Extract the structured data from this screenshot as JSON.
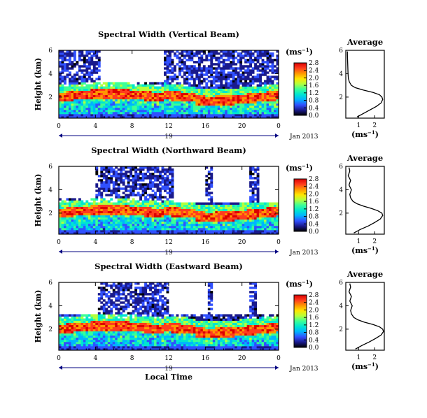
{
  "colors": {
    "colormap": [
      "#000000",
      "#1a1a8c",
      "#3050ff",
      "#00b4ff",
      "#00e6d0",
      "#3cff96",
      "#b4ff3c",
      "#ffe600",
      "#ff9600",
      "#ff3c1e",
      "#dc0000"
    ],
    "axes": "#000000",
    "date_bar": "#000080"
  },
  "panels": [
    {
      "title": "Spectral Width (Vertical Beam)",
      "average_title": "Average"
    },
    {
      "title": "Spectral Width (Northward Beam)",
      "average_title": "Average"
    },
    {
      "title": "Spectral Width (Eastward Beam)",
      "average_title": "Average"
    }
  ],
  "text": {
    "colorbar_unit": "(ms",
    "colorbar_unit_exp": "−1",
    "colorbar_unit_close": ")",
    "avg_xlabel": "(ms",
    "avg_xlabel_exp": "−1",
    "avg_xlabel_close": ")",
    "date_label": "Jan 2013",
    "day_label": "19",
    "xlabel": "Local Time",
    "ylabel": "Height (km)"
  },
  "chart_data": [
    {
      "type": "heatmap",
      "title": "Spectral Width (Vertical Beam)",
      "xlabel": "Local Time",
      "ylabel": "Height (km)",
      "x_ticks": [
        "0",
        "4",
        "8",
        "12",
        "16",
        "20",
        "0"
      ],
      "y_ticks": [
        "2",
        "4",
        "6"
      ],
      "xlim": [
        0,
        24
      ],
      "ylim": [
        0.2,
        6
      ],
      "colorbar": {
        "label": "(ms−1)",
        "range": [
          0.0,
          2.8
        ],
        "ticks": [
          "0.0",
          "0.4",
          "0.8",
          "1.2",
          "1.6",
          "2.0",
          "2.4",
          "2.8"
        ]
      },
      "description_values": {
        "high_width_layer_km": [
          1.7,
          2.5
        ],
        "upper_echo_start_h": 0
      },
      "average_profile": {
        "xlabel": "(ms−1)",
        "x_ticks": [
          "1",
          "2"
        ],
        "y_ticks": [
          "2",
          "4",
          "6"
        ],
        "xlim": [
          0.2,
          2.6
        ],
        "ylim": [
          0.2,
          6
        ],
        "height_km": [
          0.3,
          0.6,
          0.9,
          1.2,
          1.5,
          1.8,
          2.0,
          2.2,
          2.4,
          2.6,
          2.8,
          3.0,
          3.3,
          3.6,
          4.0,
          4.4,
          4.8,
          5.2,
          5.6,
          5.9
        ],
        "width_ms": [
          0.9,
          1.3,
          1.7,
          2.1,
          2.4,
          2.5,
          2.45,
          2.3,
          1.9,
          1.3,
          0.8,
          0.55,
          0.42,
          0.36,
          0.34,
          0.33,
          0.32,
          0.31,
          0.3,
          0.3
        ]
      }
    },
    {
      "type": "heatmap",
      "title": "Spectral Width (Northward Beam)",
      "xlabel": "Local Time",
      "ylabel": "Height (km)",
      "x_ticks": [
        "0",
        "4",
        "8",
        "12",
        "16",
        "20",
        "0"
      ],
      "y_ticks": [
        "2",
        "4",
        "6"
      ],
      "xlim": [
        0,
        24
      ],
      "ylim": [
        0.2,
        6
      ],
      "colorbar": {
        "label": "(ms−1)",
        "range": [
          0.0,
          2.8
        ],
        "ticks": [
          "0.0",
          "0.4",
          "0.8",
          "1.2",
          "1.6",
          "2.0",
          "2.4",
          "2.8"
        ]
      },
      "average_profile": {
        "xlabel": "(ms−1)",
        "x_ticks": [
          "1",
          "2"
        ],
        "y_ticks": [
          "2",
          "4",
          "6"
        ],
        "xlim": [
          0.2,
          2.6
        ],
        "ylim": [
          0.2,
          6
        ],
        "height_km": [
          0.3,
          0.6,
          0.9,
          1.2,
          1.5,
          1.8,
          2.0,
          2.2,
          2.4,
          2.6,
          2.8,
          3.0,
          3.3,
          3.6,
          4.0,
          4.4,
          4.8,
          5.2,
          5.6,
          5.9
        ],
        "width_ms": [
          0.7,
          1.1,
          1.6,
          2.0,
          2.35,
          2.5,
          2.45,
          2.2,
          1.8,
          1.3,
          0.9,
          0.65,
          0.5,
          0.45,
          0.55,
          0.4,
          0.5,
          0.35,
          0.45,
          0.4
        ]
      }
    },
    {
      "type": "heatmap",
      "title": "Spectral Width (Eastward Beam)",
      "xlabel": "Local Time",
      "ylabel": "Height (km)",
      "x_ticks": [
        "0",
        "4",
        "8",
        "12",
        "16",
        "20",
        "0"
      ],
      "y_ticks": [
        "2",
        "4",
        "6"
      ],
      "xlim": [
        0,
        24
      ],
      "ylim": [
        0.2,
        6
      ],
      "colorbar": {
        "label": "(ms−1)",
        "range": [
          0.0,
          2.8
        ],
        "ticks": [
          "0.0",
          "0.4",
          "0.8",
          "1.2",
          "1.6",
          "2.0",
          "2.4",
          "2.8"
        ]
      },
      "average_profile": {
        "xlabel": "(ms−1)",
        "x_ticks": [
          "1",
          "2"
        ],
        "y_ticks": [
          "2",
          "4",
          "6"
        ],
        "xlim": [
          0.2,
          2.6
        ],
        "ylim": [
          0.2,
          6
        ],
        "height_km": [
          0.3,
          0.6,
          0.9,
          1.2,
          1.5,
          1.8,
          2.0,
          2.2,
          2.4,
          2.6,
          2.8,
          3.0,
          3.3,
          3.6,
          4.0,
          4.4,
          4.8,
          5.2,
          5.6,
          5.9
        ],
        "width_ms": [
          0.8,
          1.2,
          1.65,
          2.05,
          2.4,
          2.55,
          2.5,
          2.3,
          1.9,
          1.35,
          0.95,
          0.7,
          0.55,
          0.5,
          0.6,
          0.45,
          0.55,
          0.4,
          0.5,
          0.45
        ]
      }
    }
  ]
}
